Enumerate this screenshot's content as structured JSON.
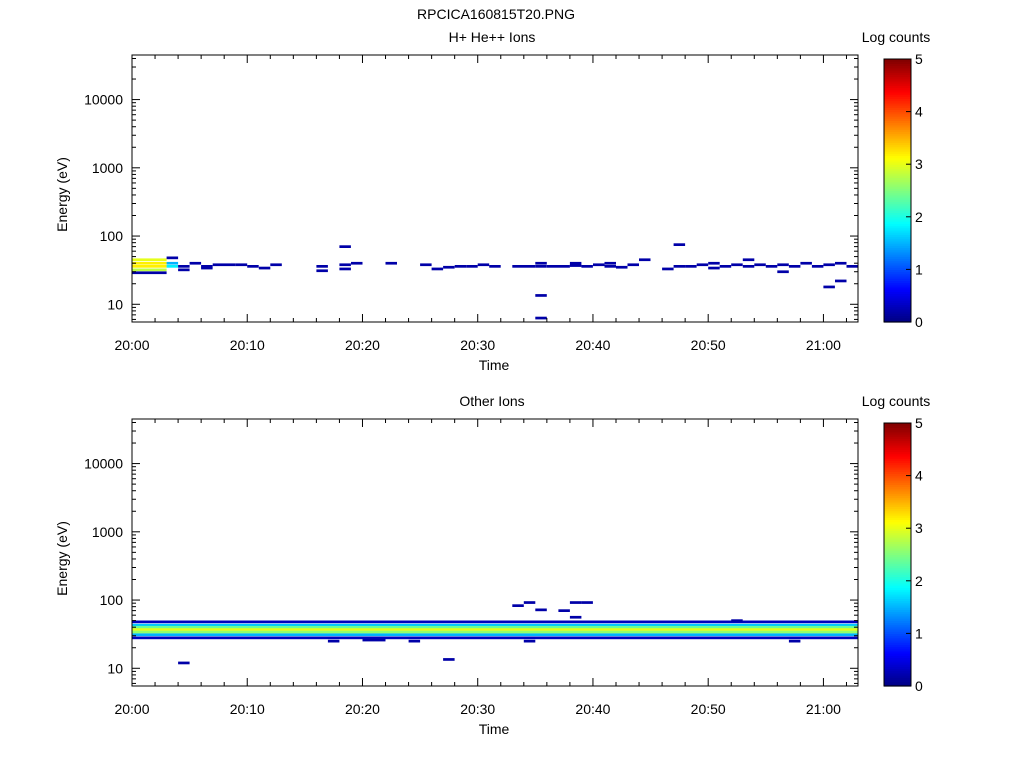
{
  "title": "RPCICA160815T20.PNG",
  "chart_data": [
    {
      "type": "heatmap",
      "title": "H+ He++ Ions",
      "xlabel": "Time",
      "ylabel": "Energy (eV)",
      "x_scale": "time",
      "xlim": [
        "20:00",
        "21:03"
      ],
      "x_ticks": [
        "20:00",
        "20:10",
        "20:20",
        "20:30",
        "20:40",
        "20:50",
        "21:00"
      ],
      "y_scale": "log",
      "ylim": [
        5.5,
        45000
      ],
      "y_ticks": [
        10,
        100,
        1000,
        10000
      ],
      "y_tick_labels": [
        "10",
        "100",
        "1000",
        "10000"
      ],
      "colorbar": {
        "label": "Log counts",
        "range": [
          0,
          5
        ],
        "ticks": [
          "0",
          "1",
          "2",
          "3",
          "4",
          "5"
        ],
        "colormap": "jet"
      },
      "cells": [
        [
          "20:00",
          "20:03",
          45,
          3.0
        ],
        [
          "20:00",
          "20:03",
          40,
          3.2
        ],
        [
          "20:00",
          "20:03",
          36,
          3.2
        ],
        [
          "20:00",
          "20:03",
          32,
          2.8
        ],
        [
          "20:00",
          "20:03",
          29,
          0.2
        ],
        [
          "20:03",
          "20:04",
          48,
          0.2
        ],
        [
          "20:03",
          "20:04",
          40,
          1.5
        ],
        [
          "20:03",
          "20:04",
          36,
          1.8
        ],
        [
          "20:04",
          "20:05",
          36,
          0.2
        ],
        [
          "20:04",
          "20:05",
          32,
          0.2
        ],
        [
          "20:05",
          "20:06",
          40,
          0.2
        ],
        [
          "20:06",
          "20:07",
          36,
          0.2
        ],
        [
          "20:06",
          "20:07",
          34,
          0.2
        ],
        [
          "20:07",
          "20:09",
          38,
          0.2
        ],
        [
          "20:09",
          "20:10",
          38,
          0.2
        ],
        [
          "20:10",
          "20:11",
          36,
          0.2
        ],
        [
          "20:11",
          "20:12",
          34,
          0.2
        ],
        [
          "20:12",
          "20:13",
          38,
          0.2
        ],
        [
          "20:16",
          "20:17",
          36,
          0.2
        ],
        [
          "20:16",
          "20:17",
          31,
          0.2
        ],
        [
          "20:18",
          "20:19",
          70,
          0.2
        ],
        [
          "20:18",
          "20:19",
          38,
          0.2
        ],
        [
          "20:18",
          "20:19",
          33,
          0.2
        ],
        [
          "20:19",
          "20:20",
          40,
          0.2
        ],
        [
          "20:22",
          "20:23",
          40,
          0.2
        ],
        [
          "20:25",
          "20:26",
          38,
          0.2
        ],
        [
          "20:26",
          "20:27",
          33,
          0.2
        ],
        [
          "20:27",
          "20:28",
          35,
          0.2
        ],
        [
          "20:28",
          "20:29",
          36,
          0.2
        ],
        [
          "20:29",
          "20:30",
          36,
          0.2
        ],
        [
          "20:30",
          "20:31",
          38,
          0.2
        ],
        [
          "20:31",
          "20:32",
          36,
          0.2
        ],
        [
          "20:33",
          "20:35",
          36,
          0.2
        ],
        [
          "20:35",
          "20:36",
          40,
          0.2
        ],
        [
          "20:35",
          "20:36",
          36,
          0.2
        ],
        [
          "20:35",
          "20:36",
          13.5,
          0.2
        ],
        [
          "20:35",
          "20:36",
          6.3,
          0.2
        ],
        [
          "20:36",
          "20:38",
          36,
          0.2
        ],
        [
          "20:38",
          "20:39",
          40,
          0.2
        ],
        [
          "20:38",
          "20:39",
          37,
          0.2
        ],
        [
          "20:39",
          "20:40",
          36,
          0.2
        ],
        [
          "20:40",
          "20:41",
          38,
          0.2
        ],
        [
          "20:41",
          "20:42",
          40,
          0.2
        ],
        [
          "20:41",
          "20:42",
          36,
          0.2
        ],
        [
          "20:42",
          "20:43",
          35,
          0.2
        ],
        [
          "20:43",
          "20:44",
          38,
          0.2
        ],
        [
          "20:44",
          "20:45",
          45,
          0.2
        ],
        [
          "20:46",
          "20:47",
          33,
          0.2
        ],
        [
          "20:47",
          "20:48",
          36,
          0.2
        ],
        [
          "20:47",
          "20:48",
          75,
          0.2
        ],
        [
          "20:48",
          "20:49",
          36,
          0.2
        ],
        [
          "20:49",
          "20:50",
          38,
          0.2
        ],
        [
          "20:50",
          "20:51",
          40,
          0.2
        ],
        [
          "20:50",
          "20:51",
          34,
          0.2
        ],
        [
          "20:51",
          "20:52",
          36,
          0.2
        ],
        [
          "20:52",
          "20:53",
          38,
          0.2
        ],
        [
          "20:53",
          "20:54",
          45,
          0.2
        ],
        [
          "20:53",
          "20:54",
          36,
          0.2
        ],
        [
          "20:54",
          "20:55",
          38,
          0.2
        ],
        [
          "20:55",
          "20:56",
          36,
          0.2
        ],
        [
          "20:56",
          "20:57",
          38,
          0.2
        ],
        [
          "20:56",
          "20:57",
          30,
          0.2
        ],
        [
          "20:57",
          "20:58",
          36,
          0.2
        ],
        [
          "20:58",
          "20:59",
          40,
          0.2
        ],
        [
          "20:59",
          "21:00",
          36,
          0.2
        ],
        [
          "21:00",
          "21:01",
          18,
          0.2
        ],
        [
          "21:00",
          "21:01",
          38,
          0.2
        ],
        [
          "21:01",
          "21:02",
          22,
          0.2
        ],
        [
          "21:01",
          "21:02",
          40,
          0.2
        ],
        [
          "21:02",
          "21:03",
          36,
          0.2
        ]
      ]
    },
    {
      "type": "heatmap",
      "title": "Other Ions",
      "xlabel": "Time",
      "ylabel": "Energy (eV)",
      "x_scale": "time",
      "xlim": [
        "20:00",
        "21:03"
      ],
      "x_ticks": [
        "20:00",
        "20:10",
        "20:20",
        "20:30",
        "20:40",
        "20:50",
        "21:00"
      ],
      "y_scale": "log",
      "ylim": [
        5.5,
        45000
      ],
      "y_ticks": [
        10,
        100,
        1000,
        10000
      ],
      "y_tick_labels": [
        "10",
        "100",
        "1000",
        "10000"
      ],
      "colorbar": {
        "label": "Log counts",
        "range": [
          0,
          5
        ],
        "ticks": [
          "0",
          "1",
          "2",
          "3",
          "4",
          "5"
        ],
        "colormap": "jet"
      },
      "cells": [
        [
          "20:00",
          "21:03",
          48,
          0.3
        ],
        [
          "20:00",
          "21:03",
          43,
          1.6
        ],
        [
          "20:00",
          "21:03",
          40,
          2.4
        ],
        [
          "20:00",
          "21:03",
          37,
          3.0
        ],
        [
          "20:00",
          "21:03",
          34,
          2.6
        ],
        [
          "20:00",
          "21:03",
          31,
          1.5
        ],
        [
          "20:00",
          "21:03",
          28,
          0.3
        ],
        [
          "20:04",
          "20:05",
          12,
          0.2
        ],
        [
          "20:20",
          "20:22",
          26,
          0.2
        ],
        [
          "20:24",
          "20:25",
          25,
          0.2
        ],
        [
          "20:27",
          "20:28",
          13.5,
          0.2
        ],
        [
          "20:17",
          "20:18",
          25,
          0.2
        ],
        [
          "20:33",
          "20:34",
          83,
          0.2
        ],
        [
          "20:34",
          "20:35",
          92,
          0.2
        ],
        [
          "20:35",
          "20:36",
          72,
          0.2
        ],
        [
          "20:34",
          "20:35",
          25,
          0.2
        ],
        [
          "20:37",
          "20:38",
          70,
          0.2
        ],
        [
          "20:38",
          "20:39",
          56,
          0.2
        ],
        [
          "20:38",
          "20:39",
          92,
          0.2
        ],
        [
          "20:39",
          "20:40",
          92,
          0.2
        ],
        [
          "20:52",
          "20:53",
          50,
          0.2
        ],
        [
          "20:57",
          "20:58",
          25,
          0.2
        ]
      ]
    }
  ]
}
